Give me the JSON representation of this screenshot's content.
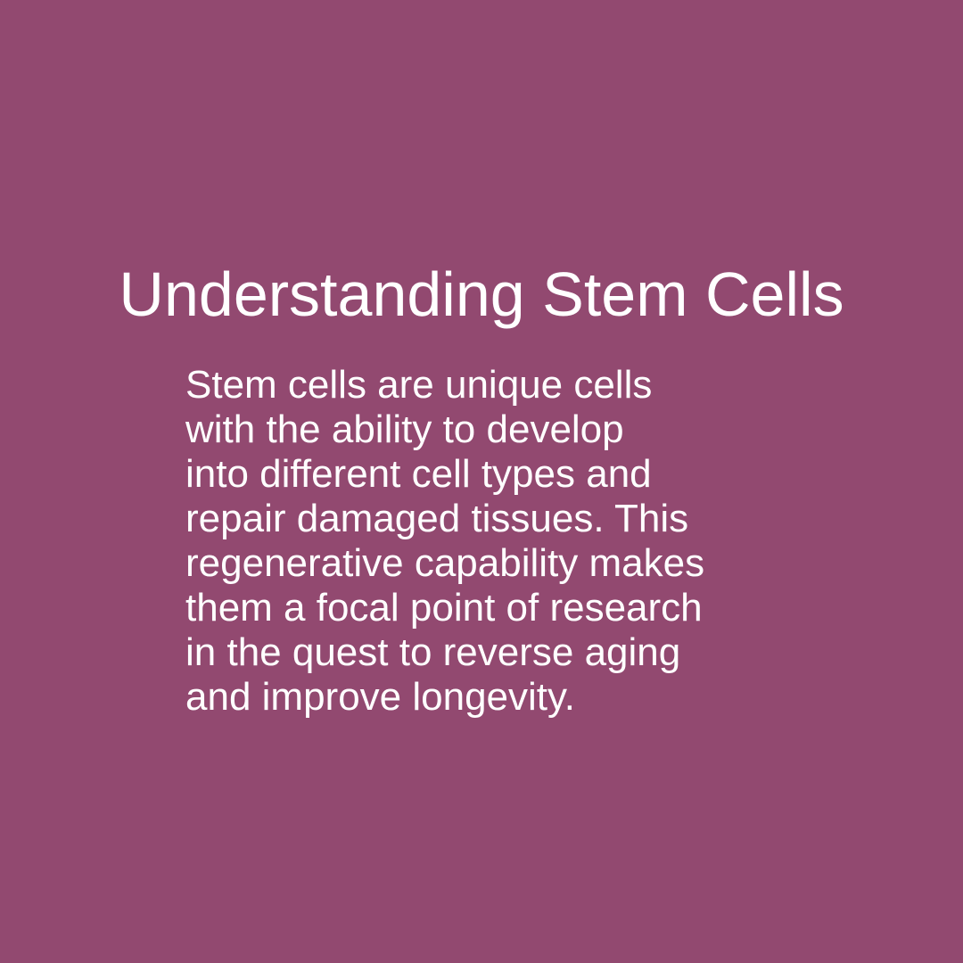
{
  "slide": {
    "background_color": "#924970",
    "text_color": "#ffffff",
    "title": "Understanding Stem Cells",
    "body_lines": [
      "Stem cells are unique cells",
      "with the ability to develop",
      "into different cell types and",
      "repair damaged tissues. This",
      "regenerative capability makes",
      "them a focal point of research",
      "in the quest to reverse aging",
      "and improve longevity."
    ]
  }
}
